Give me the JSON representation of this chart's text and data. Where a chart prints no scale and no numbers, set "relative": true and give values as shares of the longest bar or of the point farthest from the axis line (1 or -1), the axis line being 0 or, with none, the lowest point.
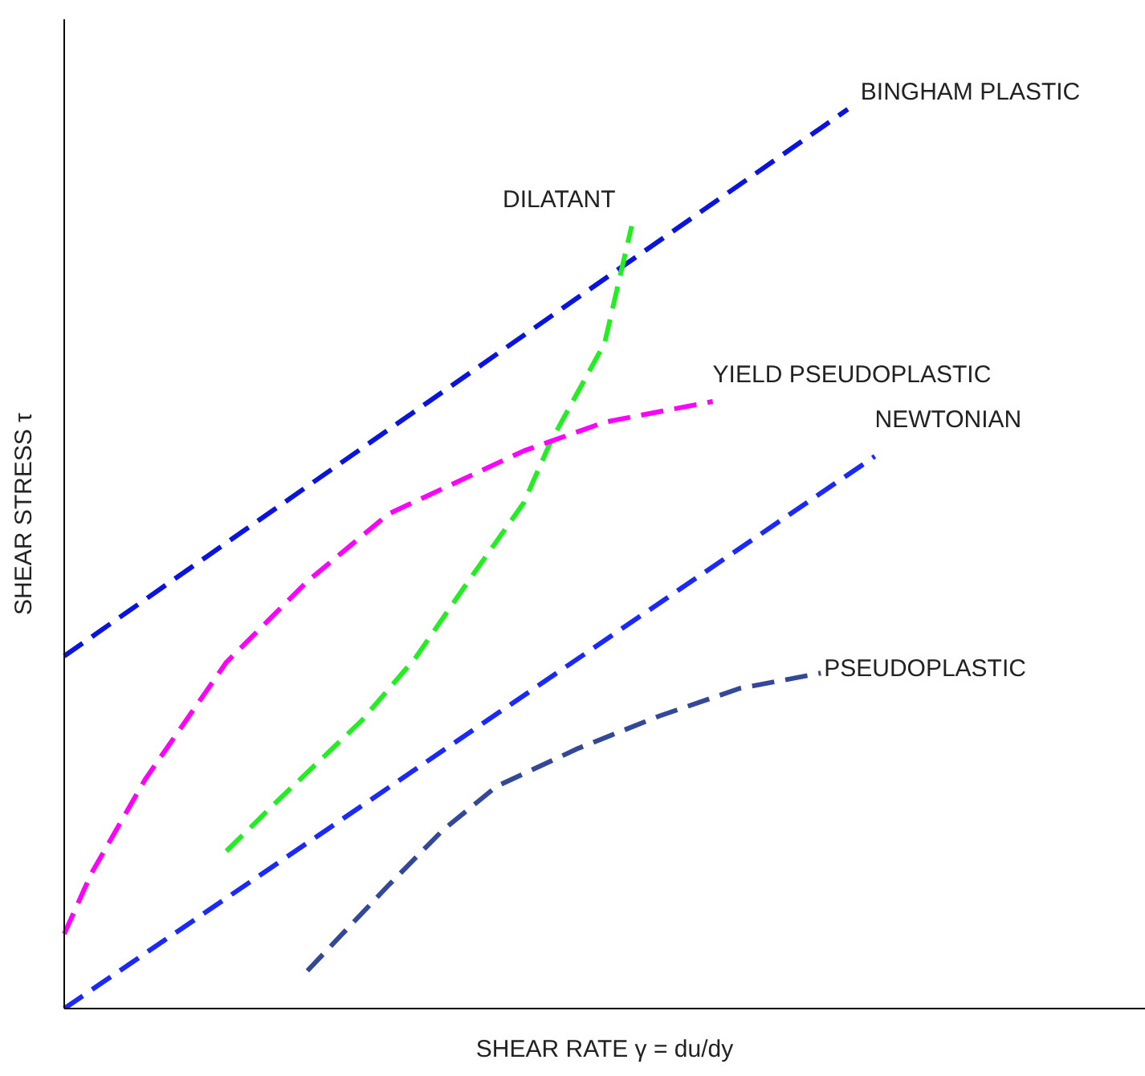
{
  "chart_data": {
    "type": "line",
    "relative": true,
    "xlabel": "SHEAR RATE γ = du/dy",
    "ylabel": "SHEAR STRESS τ",
    "legend": false,
    "grid": false,
    "line_style": "dashed",
    "marker": "none",
    "categories": [
      null,
      null,
      null,
      null,
      null,
      null,
      null,
      null,
      null,
      null,
      null,
      null,
      null,
      null,
      null,
      null,
      null,
      null,
      null,
      null,
      null,
      null,
      null,
      null,
      null,
      null,
      null,
      null,
      null,
      null,
      null,
      null,
      null,
      null,
      null,
      null,
      null,
      null,
      null,
      null,
      null
    ],
    "series": [
      {
        "name": "BINGHAM PLASTIC",
        "color": "#0a14e0",
        "values": [
          0.392,
          null,
          null,
          null,
          null,
          null,
          null,
          null,
          null,
          null,
          null,
          null,
          null,
          null,
          null,
          null,
          null,
          null,
          null,
          null,
          null,
          null,
          null,
          null,
          null,
          null,
          null,
          null,
          null,
          1,
          null,
          null,
          null,
          null,
          null,
          null,
          null,
          null,
          null,
          null,
          null
        ]
      },
      {
        "name": "DILATANT",
        "color": "#22ee22",
        "values": [
          null,
          null,
          null,
          null,
          null,
          null,
          0.175,
          null,
          0.234,
          null,
          null,
          0.32,
          null,
          0.39,
          null,
          0.477,
          null,
          0.562,
          0.63,
          null,
          0.74,
          0.87,
          null,
          null,
          null,
          null,
          null,
          null,
          null,
          null,
          null,
          null,
          null,
          null,
          null,
          null,
          null,
          null,
          null,
          null,
          null
        ]
      },
      {
        "name": "YIELD PSEUDOPLASTIC",
        "color": "#ff00ff",
        "values": [
          0.083,
          0.15,
          null,
          0.255,
          null,
          null,
          0.385,
          null,
          null,
          0.475,
          null,
          null,
          0.55,
          null,
          null,
          null,
          null,
          0.62,
          null,
          null,
          0.652,
          null,
          null,
          null,
          0.675,
          null,
          null,
          null,
          null,
          null,
          null,
          null,
          null,
          null,
          null,
          null,
          null,
          null,
          null,
          null,
          null
        ]
      },
      {
        "name": "NEWTONIAN",
        "color": "#1a2aff",
        "values": [
          0,
          null,
          null,
          null,
          null,
          null,
          null,
          null,
          null,
          null,
          null,
          null,
          null,
          null,
          null,
          null,
          null,
          null,
          null,
          null,
          null,
          null,
          null,
          null,
          null,
          null,
          null,
          null,
          null,
          null,
          0.614,
          null,
          null,
          null,
          null,
          null,
          null,
          null,
          null,
          null,
          null
        ]
      },
      {
        "name": "PSEUDOPLASTIC",
        "color": "#34489a",
        "values": [
          null,
          null,
          null,
          null,
          null,
          null,
          null,
          null,
          null,
          0.042,
          null,
          null,
          0.137,
          null,
          0.198,
          null,
          0.247,
          null,
          null,
          0.289,
          null,
          null,
          0.325,
          null,
          null,
          0.356,
          null,
          null,
          0.373,
          null,
          null,
          null,
          null,
          null,
          null,
          null,
          null,
          null,
          null,
          null,
          null
        ]
      }
    ]
  }
}
